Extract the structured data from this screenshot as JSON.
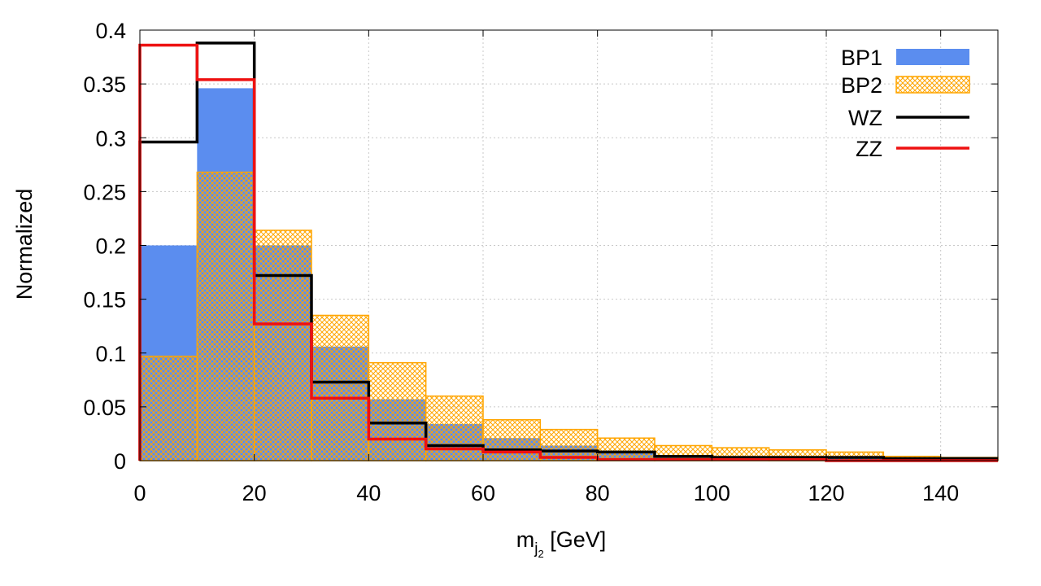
{
  "chart_data": {
    "type": "histogram",
    "title": "",
    "xlabel": {
      "main": "m",
      "sub": "j",
      "subsub": "2",
      "unit": " [GeV]"
    },
    "ylabel": "Normalized",
    "xlim": [
      0,
      150
    ],
    "ylim": [
      0,
      0.4
    ],
    "xticks": [
      0,
      20,
      40,
      60,
      80,
      100,
      120,
      140
    ],
    "yticks": [
      0,
      0.05,
      0.1,
      0.15,
      0.2,
      0.25,
      0.3,
      0.35,
      0.4
    ],
    "ytick_labels": [
      "0",
      "0.05",
      "0.1",
      "0.15",
      "0.2",
      "0.25",
      "0.3",
      "0.35",
      "0.4"
    ],
    "grid": true,
    "bin_edges": [
      0,
      10,
      20,
      30,
      40,
      50,
      60,
      70,
      80,
      90,
      100,
      110,
      120,
      130,
      140,
      150
    ],
    "series": [
      {
        "name": "BP1",
        "style": "filled",
        "color": "#5b8def",
        "values": [
          0.2,
          0.346,
          0.2,
          0.106,
          0.057,
          0.034,
          0.021,
          0.014,
          0.008,
          0.005,
          0.003,
          0.002,
          0.002,
          0.001,
          0.001
        ]
      },
      {
        "name": "BP2",
        "style": "crosshatch",
        "color": "#ffa500",
        "values": [
          0.097,
          0.268,
          0.214,
          0.135,
          0.091,
          0.06,
          0.038,
          0.029,
          0.021,
          0.014,
          0.012,
          0.01,
          0.008,
          0.004,
          0.003
        ]
      },
      {
        "name": "WZ",
        "style": "step",
        "color": "#000000",
        "values": [
          0.296,
          0.388,
          0.172,
          0.073,
          0.035,
          0.014,
          0.01,
          0.009,
          0.008,
          0.004,
          0.003,
          0.003,
          0.003,
          0.002,
          0.002
        ]
      },
      {
        "name": "ZZ",
        "style": "step",
        "color": "#ee1111",
        "values": [
          0.386,
          0.354,
          0.127,
          0.058,
          0.02,
          0.011,
          0.008,
          0.003,
          0.001,
          0.001,
          0.001,
          0.001,
          0.0,
          0.0,
          0.0
        ]
      }
    ],
    "legend_position": "top-right"
  }
}
